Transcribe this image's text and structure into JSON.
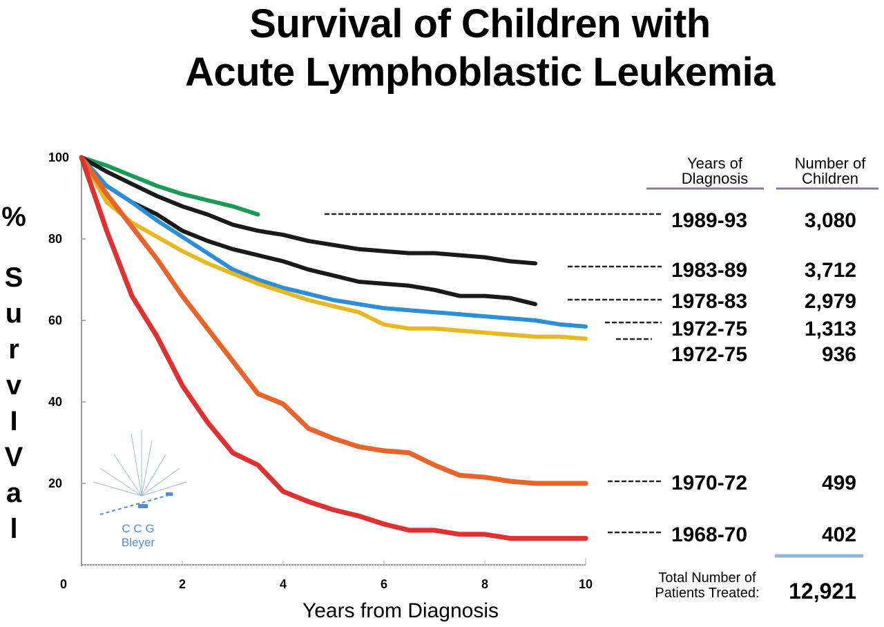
{
  "chart_data": {
    "type": "line",
    "title_lines": [
      "Survival of Children with",
      "Acute Lymphoblastic Leukemia"
    ],
    "xlabel": "Years from Diagnosis",
    "ylabel_letters": [
      "%",
      "S",
      "u",
      "r",
      "v",
      "I",
      "V",
      "a",
      "l"
    ],
    "xlim": [
      0,
      10
    ],
    "ylim": [
      0,
      100
    ],
    "x_ticks": [
      "0",
      "2",
      "4",
      "6",
      "8",
      "10"
    ],
    "y_ticks": [
      "100",
      "80",
      "60",
      "40",
      "20"
    ],
    "table_headers": {
      "years": [
        "Years of",
        "Dlagnosis"
      ],
      "number": [
        "Number of",
        "Children"
      ]
    },
    "series": [
      {
        "name": "1989-93",
        "count": "3,080",
        "color": "#1b9a55",
        "x": [
          0,
          0.5,
          1,
          1.5,
          2,
          2.5,
          3,
          3.5
        ],
        "y": [
          100,
          98,
          95.5,
          93,
          91,
          89.5,
          88,
          86
        ]
      },
      {
        "name": "1983-89",
        "count": "3,712",
        "color": "#1a1a1a",
        "x": [
          0,
          0.5,
          1,
          1.5,
          2,
          2.5,
          3,
          3.5,
          4,
          4.5,
          5,
          5.5,
          6,
          6.5,
          7,
          7.5,
          8,
          8.5,
          9
        ],
        "y": [
          100,
          96.5,
          93.5,
          90.5,
          88,
          86,
          83.5,
          82,
          81,
          79.5,
          78.5,
          77.5,
          77,
          76.5,
          76.5,
          76,
          75.5,
          74.5,
          74
        ]
      },
      {
        "name": "1978-83",
        "count": "2,979",
        "color": "#1a1a1a",
        "x": [
          0,
          0.5,
          1,
          1.5,
          2,
          2.5,
          3,
          3.5,
          4,
          4.5,
          5,
          5.5,
          6,
          6.5,
          7,
          7.5,
          8,
          8.5,
          9
        ],
        "y": [
          100,
          93,
          89,
          86,
          82,
          79.5,
          77.5,
          76,
          74.5,
          72.5,
          71,
          69.5,
          69,
          68.5,
          67.5,
          66,
          66,
          65.5,
          64
        ]
      },
      {
        "name": "1972-75",
        "count": "1,313",
        "color": "#2a8fd6",
        "x": [
          0,
          0.5,
          1,
          1.5,
          2,
          2.5,
          3,
          3.5,
          4,
          4.5,
          5,
          5.5,
          6,
          6.5,
          7,
          7.5,
          8,
          8.5,
          9,
          9.5,
          10
        ],
        "y": [
          100,
          93,
          89,
          84.5,
          80.5,
          76.5,
          72.5,
          70,
          68,
          66.5,
          65,
          64,
          63,
          62.5,
          62,
          61.5,
          61,
          60.5,
          60,
          59,
          58.5
        ]
      },
      {
        "name": "1972-75",
        "count": "936",
        "color": "#e8b820",
        "x": [
          0,
          0.5,
          1,
          1.5,
          2,
          2.5,
          3,
          3.5,
          4,
          4.5,
          5,
          5.5,
          6,
          6.5,
          7,
          7.5,
          8,
          8.5,
          9,
          9.5,
          10
        ],
        "y": [
          100,
          89,
          84,
          80.5,
          77,
          74,
          71.5,
          69,
          67,
          65,
          63.5,
          62,
          59,
          58,
          58,
          57.5,
          57,
          56.5,
          56,
          56,
          55.5
        ]
      },
      {
        "name": "1970-72",
        "count": "499",
        "color": "#e8642a",
        "x": [
          0,
          0.5,
          1,
          1.5,
          2,
          2.5,
          3,
          3.5,
          4,
          4.5,
          5,
          5.5,
          6,
          6.5,
          7,
          7.5,
          8,
          8.5,
          9,
          9.5,
          10
        ],
        "y": [
          100,
          91,
          83,
          75,
          66,
          58,
          50,
          42,
          39.5,
          33.5,
          31,
          29,
          28,
          27.5,
          24.5,
          22,
          21.5,
          20.5,
          20,
          20,
          20
        ]
      },
      {
        "name": "1968-70",
        "count": "402",
        "color": "#e03030",
        "x": [
          0,
          0.5,
          1,
          1.5,
          2,
          2.5,
          3,
          3.5,
          4,
          4.5,
          5,
          5.5,
          6,
          6.5,
          7,
          7.5,
          8,
          8.5,
          9,
          9.5,
          10
        ],
        "y": [
          100,
          82,
          66,
          56,
          44,
          35,
          27.5,
          24.5,
          18,
          15.5,
          13.5,
          12,
          10,
          8.5,
          8.5,
          7.5,
          7.5,
          6.5,
          6.5,
          6.5,
          6.5
        ]
      }
    ],
    "total": {
      "label_lines": [
        "Total Number of",
        "Patients Treated:"
      ],
      "value": "12,921"
    },
    "logo": {
      "lines": [
        "C C G",
        "Bleyer"
      ]
    }
  }
}
